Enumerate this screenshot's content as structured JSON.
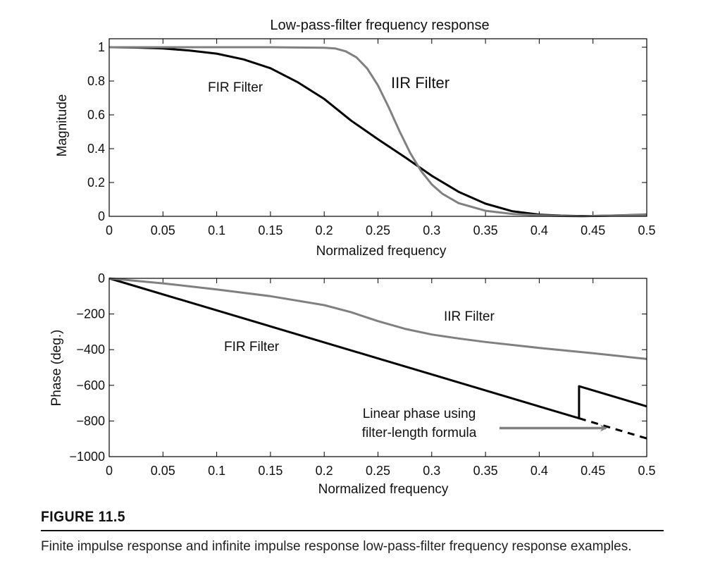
{
  "figure": {
    "label": "FIGURE 11.5",
    "caption": "Finite impulse response and infinite impulse response low-pass-filter frequency response examples."
  },
  "chart_data": [
    {
      "type": "line",
      "title": "Low-pass-filter frequency response",
      "xlabel": "Normalized frequency",
      "ylabel": "Magnitude",
      "xlim": [
        0,
        0.5
      ],
      "ylim": [
        0,
        1.05
      ],
      "xticks": [
        0,
        0.05,
        0.1,
        0.15,
        0.2,
        0.25,
        0.3,
        0.35,
        0.4,
        0.45,
        0.5
      ],
      "xtick_labels": [
        "0",
        "0.05",
        "0.1",
        "0.15",
        "0.2",
        "0.25",
        "0.3",
        "0.35",
        "0.4",
        "0.45",
        "0.5"
      ],
      "yticks": [
        0,
        0.2,
        0.4,
        0.6,
        0.8,
        1
      ],
      "ytick_labels": [
        "0",
        "0.2",
        "0.4",
        "0.6",
        "0.8",
        "1"
      ],
      "grid": false,
      "series": [
        {
          "name": "FIR Filter",
          "color": "#000000",
          "x": [
            0,
            0.025,
            0.05,
            0.075,
            0.1,
            0.125,
            0.15,
            0.175,
            0.2,
            0.225,
            0.25,
            0.275,
            0.3,
            0.325,
            0.35,
            0.375,
            0.4,
            0.42,
            0.435,
            0.45,
            0.475,
            0.5
          ],
          "y": [
            1.0,
            0.998,
            0.993,
            0.98,
            0.962,
            0.928,
            0.876,
            0.794,
            0.694,
            0.566,
            0.456,
            0.35,
            0.24,
            0.145,
            0.075,
            0.03,
            0.01,
            0.004,
            0.002,
            0.002,
            0.006,
            0.01
          ]
        },
        {
          "name": "IIR Filter",
          "color": "#808080",
          "x": [
            0,
            0.05,
            0.1,
            0.15,
            0.2,
            0.21,
            0.22,
            0.23,
            0.24,
            0.25,
            0.26,
            0.27,
            0.28,
            0.29,
            0.3,
            0.31,
            0.325,
            0.35,
            0.375,
            0.4,
            0.42,
            0.44,
            0.45,
            0.5
          ],
          "y": [
            1.0,
            1.0,
            1.0,
            1.0,
            0.997,
            0.993,
            0.976,
            0.94,
            0.874,
            0.774,
            0.644,
            0.504,
            0.374,
            0.269,
            0.189,
            0.133,
            0.078,
            0.033,
            0.014,
            0.006,
            0.002,
            0.0,
            0.002,
            0.008
          ]
        }
      ],
      "annotations": [
        {
          "text": "FIR Filter",
          "x": 0.12,
          "y": 0.8
        },
        {
          "text": "IIR Filter",
          "x": 0.26,
          "y": 0.83
        }
      ]
    },
    {
      "type": "line",
      "title": "",
      "xlabel": "Normalized frequency",
      "ylabel": "Phase (deg.)",
      "xlim": [
        0,
        0.5
      ],
      "ylim": [
        -1000,
        0
      ],
      "xticks": [
        0,
        0.05,
        0.1,
        0.15,
        0.2,
        0.25,
        0.3,
        0.35,
        0.4,
        0.45,
        0.5
      ],
      "xtick_labels": [
        "0",
        "0.05",
        "0.1",
        "0.15",
        "0.2",
        "0.25",
        "0.3",
        "0.35",
        "0.4",
        "0.45",
        "0.5"
      ],
      "yticks": [
        -1000,
        -800,
        -600,
        -400,
        -200,
        0
      ],
      "ytick_labels": [
        "−1000",
        "−800",
        "−600",
        "−400",
        "−200",
        "0"
      ],
      "grid": false,
      "series": [
        {
          "name": "FIR Filter",
          "color": "#000000",
          "x": [
            0,
            0.437,
            0.437,
            0.5
          ],
          "y": [
            0,
            -785,
            -605,
            -718
          ]
        },
        {
          "name": "IIR Filter",
          "color": "#808080",
          "x": [
            0,
            0.05,
            0.1,
            0.15,
            0.2,
            0.225,
            0.25,
            0.275,
            0.3,
            0.325,
            0.35,
            0.4,
            0.45,
            0.5
          ],
          "y": [
            0,
            -28,
            -62,
            -100,
            -150,
            -190,
            -240,
            -283,
            -315,
            -337,
            -357,
            -390,
            -420,
            -452
          ]
        },
        {
          "name": "Linear phase using filter-length formula",
          "color": "#000000",
          "style": "dashed",
          "x": [
            0.437,
            0.5
          ],
          "y": [
            -785,
            -898
          ]
        }
      ],
      "annotations": [
        {
          "text": "IIR Filter",
          "x": 0.33,
          "y": -205
        },
        {
          "text": "FIR Filter",
          "x": 0.134,
          "y": -378
        },
        {
          "text": "Linear phase using",
          "x": 0.316,
          "y": -752
        },
        {
          "text": "filter-length formula",
          "x": 0.316,
          "y": -857
        }
      ],
      "arrow": {
        "from": [
          0.363,
          -840
        ],
        "to": [
          0.462,
          -840
        ],
        "color": "#808080"
      }
    }
  ]
}
